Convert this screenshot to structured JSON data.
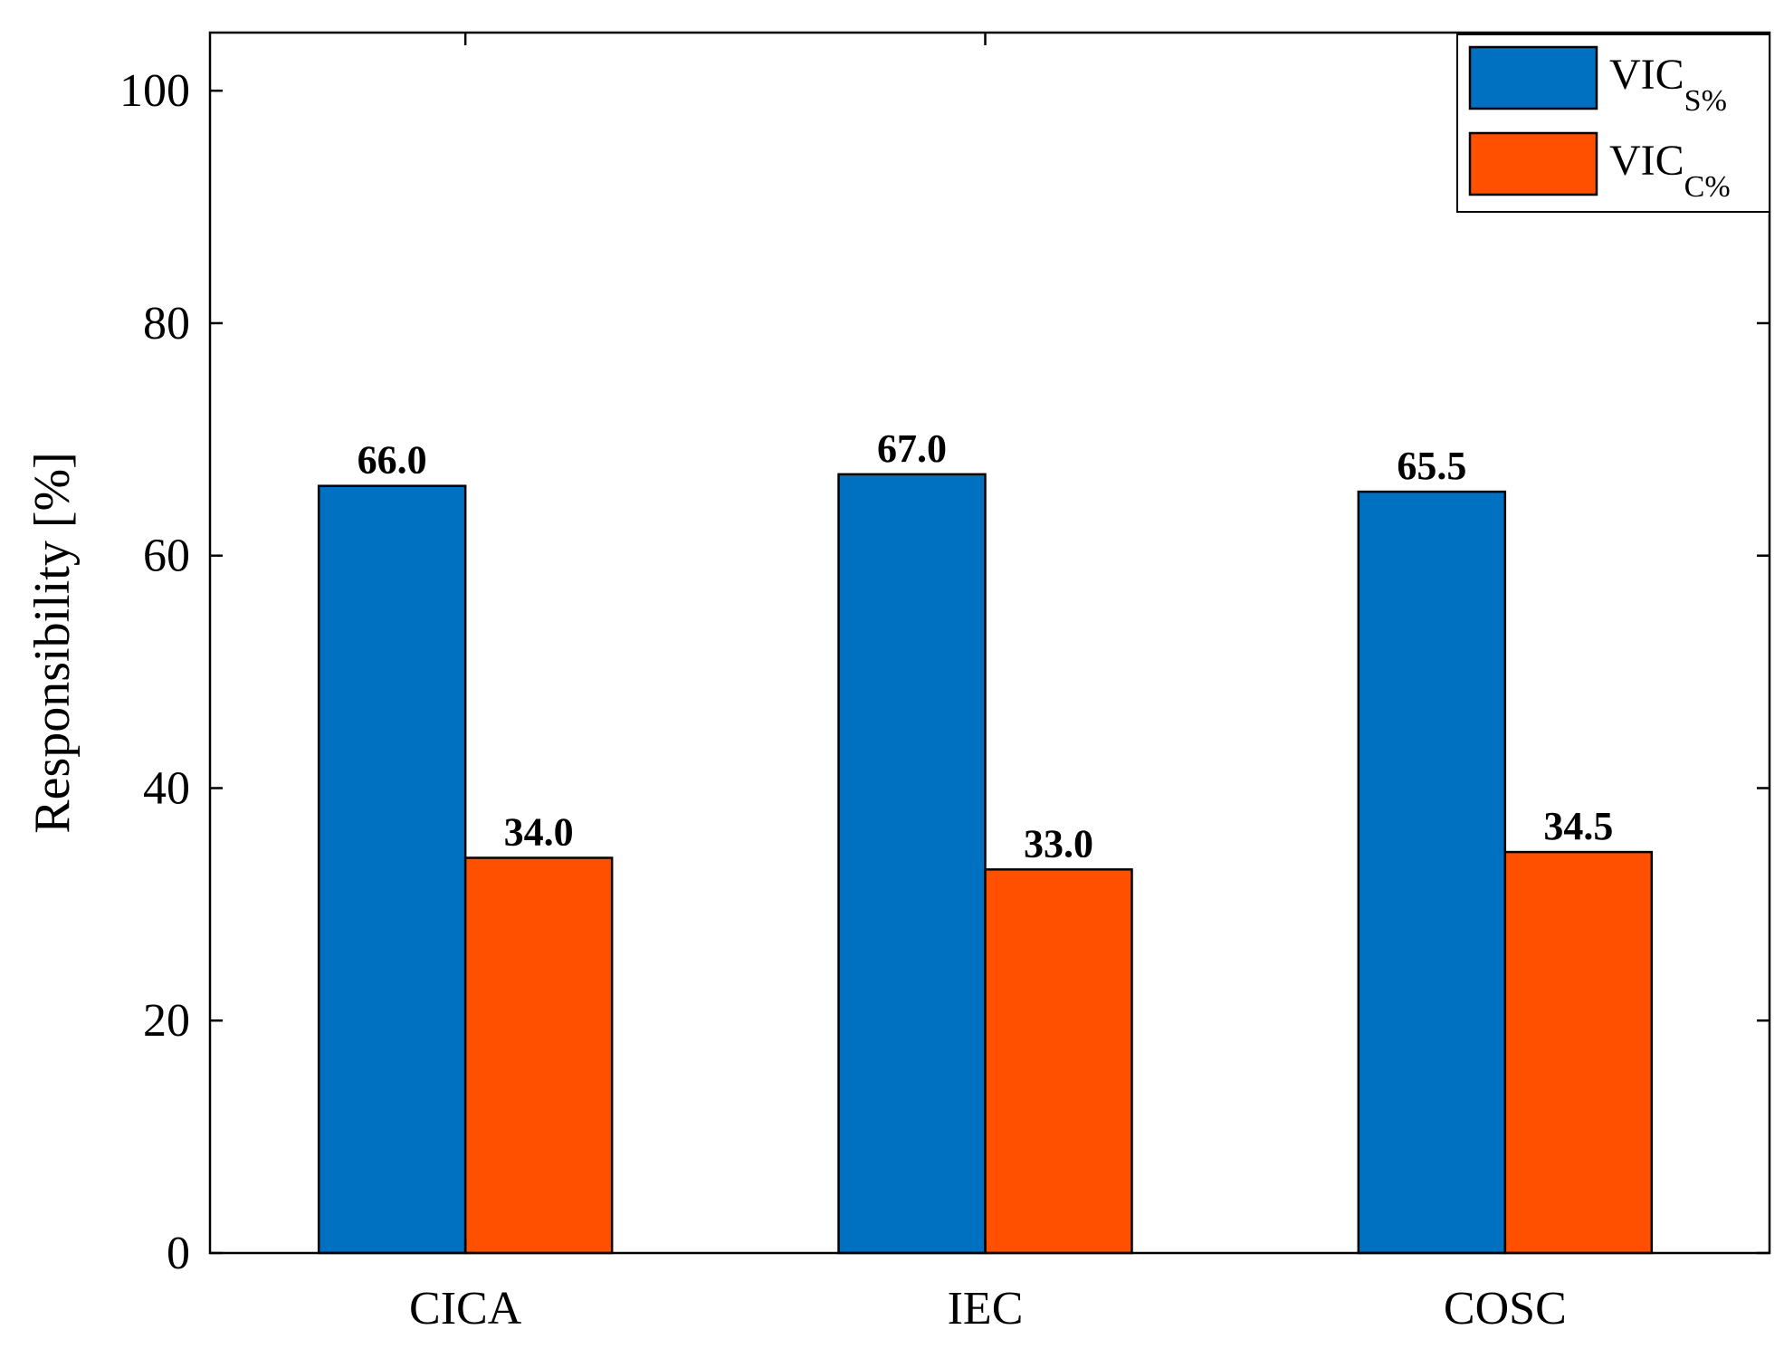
{
  "chart_data": {
    "type": "bar",
    "title": "",
    "xlabel": "",
    "ylabel": "Responsibility [%]",
    "ylim": [
      0,
      105
    ],
    "yticks": [
      0,
      20,
      40,
      60,
      80,
      100
    ],
    "grid": false,
    "categories": [
      "CICA",
      "IEC",
      "COSC"
    ],
    "series": [
      {
        "name": "VIC_S%",
        "legend_main": "VIC",
        "legend_sub": "S%",
        "color": "#0070C0",
        "values": [
          66.0,
          67.0,
          65.5
        ],
        "labels": [
          "66.0",
          "67.0",
          "65.5"
        ]
      },
      {
        "name": "VIC_C%",
        "legend_main": "VIC",
        "legend_sub": "C%",
        "color": "#FF5000",
        "values": [
          34.0,
          33.0,
          34.5
        ],
        "labels": [
          "34.0",
          "33.0",
          "34.5"
        ]
      }
    ],
    "legend_position": "top-right"
  }
}
